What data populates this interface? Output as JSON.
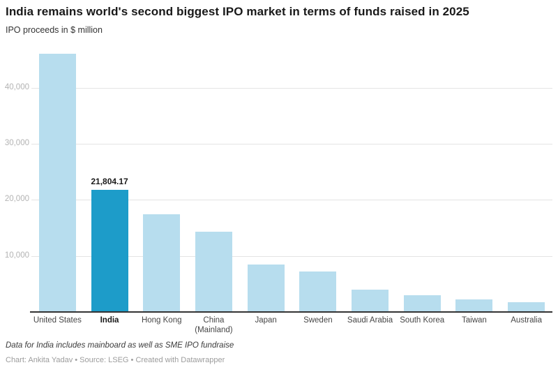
{
  "header": {
    "title": "India remains world's second biggest IPO market in terms of funds raised in 2025",
    "subtitle": "IPO proceeds in $ million"
  },
  "chart_data": {
    "type": "bar",
    "title": "India remains world's second biggest IPO market in terms of funds raised in 2025",
    "ylabel": "IPO proceeds in $ million",
    "xlabel": "",
    "categories": [
      "United States",
      "India",
      "Hong Kong",
      "China (Mainland)",
      "Japan",
      "Sweden",
      "Saudi Arabia",
      "South Korea",
      "Taiwan",
      "Australia"
    ],
    "values": [
      46100,
      21804.17,
      17400,
      14300,
      8500,
      7200,
      4000,
      3000,
      2250,
      1750
    ],
    "highlight_index": 1,
    "highlight_value_label": "21,804.17",
    "yticks": [
      10000,
      20000,
      30000,
      40000
    ],
    "ytick_labels": [
      "10,000",
      "20,000",
      "30,000",
      "40,000"
    ],
    "ylim": [
      0,
      47600
    ],
    "grid": true,
    "legend": "none",
    "colors": {
      "bar": "#b7ddee",
      "highlight": "#1d9cc9",
      "gridline": "#e4e4e4",
      "baseline": "#333333"
    }
  },
  "footer": {
    "note": "Data for India includes mainboard as well as SME IPO fundraise",
    "credits": "Chart: Ankita Yadav • Source: LSEG • Created with Datawrapper"
  }
}
